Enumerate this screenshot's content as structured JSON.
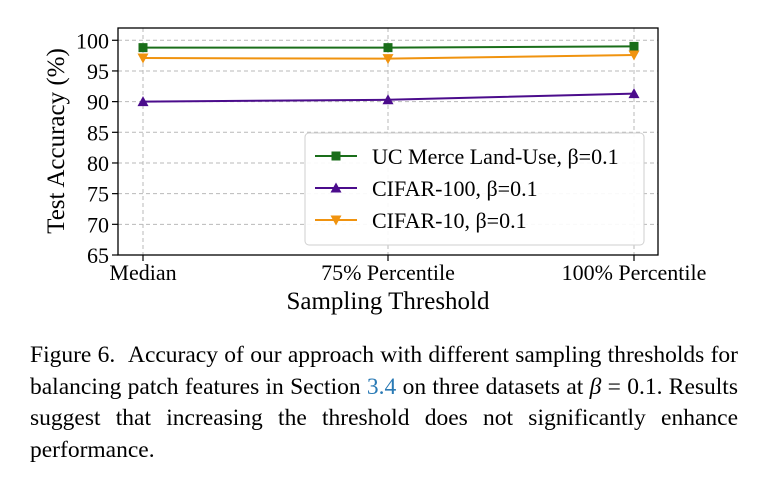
{
  "chart_data": {
    "type": "line",
    "categories": [
      "Median",
      "75% Percentile",
      "100% Percentile"
    ],
    "series": [
      {
        "name": "UC Merce Land-Use, β=0.1",
        "values": [
          98.8,
          98.8,
          99.0
        ],
        "color": "#1a6e1a",
        "marker": "square"
      },
      {
        "name": "CIFAR-100, β=0.1",
        "values": [
          90.0,
          90.3,
          91.3
        ],
        "color": "#4b0c8c",
        "marker": "triangle-up"
      },
      {
        "name": "CIFAR-10, β=0.1",
        "values": [
          97.1,
          97.0,
          97.6
        ],
        "color": "#f0930f",
        "marker": "triangle-down"
      }
    ],
    "xlabel": "Sampling Threshold",
    "ylabel": "Test Accuracy (%)",
    "ylim": [
      65,
      102
    ],
    "yticks": [
      65,
      70,
      75,
      80,
      85,
      90,
      95,
      100
    ],
    "grid": true,
    "legend_position": "lower-right"
  },
  "caption": {
    "label": "Figure 6.",
    "text_before_ref": "Accuracy of our approach with different sampling thresholds for balancing patch features in Section ",
    "section_ref": "3.4",
    "text_mid": " on three datasets at ",
    "beta_symbol": "β",
    "beta_equals": " = 0.1.",
    "text_after": " Results suggest that increasing the threshold does not significantly enhance performance."
  }
}
